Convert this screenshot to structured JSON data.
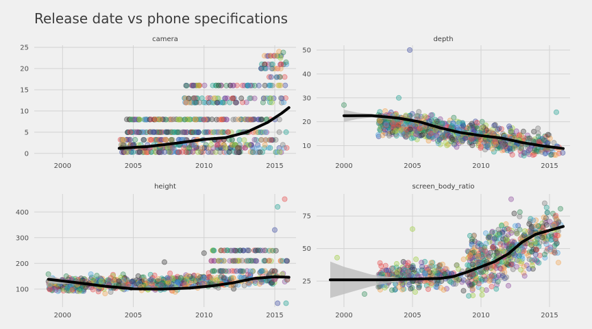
{
  "chart_data": {
    "type": "scatter",
    "title": "Release date vs phone specifications",
    "xlabel": "",
    "ylabel": "",
    "grid": true,
    "legend": "none",
    "trend_color": "#000000",
    "ribbon_color": "#bdbdbd",
    "point_colors": [
      "#e64b4b",
      "#4aa3df",
      "#2e8b57",
      "#3b4aa0",
      "#f2a04a",
      "#8b4a9c",
      "#9ccc3d",
      "#333333",
      "#777777",
      "#1a9e8f"
    ],
    "facets": [
      {
        "name": "camera",
        "xlim": [
          1998,
          2016.5
        ],
        "ylim": [
          -1,
          25.5
        ],
        "x_ticks": [
          2000,
          2005,
          2010,
          2015
        ],
        "x_tick_labels": [
          "2000",
          "2005",
          "2010",
          "2015"
        ],
        "y_ticks": [
          0,
          5,
          10,
          15,
          20,
          25
        ],
        "y_tick_labels": [
          "0",
          "5",
          "10",
          "15",
          "20",
          "25"
        ],
        "trend": [
          [
            2004,
            1.2
          ],
          [
            2006,
            1.6
          ],
          [
            2008,
            2.4
          ],
          [
            2010,
            3.3
          ],
          [
            2011.5,
            3.7
          ],
          [
            2013,
            5.0
          ],
          [
            2014.5,
            7.3
          ],
          [
            2015.5,
            9.5
          ],
          [
            2016,
            10.8
          ]
        ],
        "ribbon": null,
        "point_sets": [
          {
            "x_range": [
              2004,
              2016
            ],
            "y_values": [
              0.3,
              1.3,
              2,
              3.2
            ],
            "count": 320
          },
          {
            "x_range": [
              2004.5,
              2016
            ],
            "y_values": [
              5,
              8
            ],
            "count": 260
          },
          {
            "x_range": [
              2008.5,
              2016
            ],
            "y_values": [
              12,
              13,
              16
            ],
            "count": 130
          },
          {
            "x_range": [
              2014,
              2016
            ],
            "y_values": [
              18,
              20,
              21,
              23
            ],
            "count": 40
          }
        ],
        "outliers": [
          [
            2015.3,
            24
          ],
          [
            2015.6,
            23.8
          ],
          [
            2015.8,
            21.5
          ],
          [
            2015.4,
            22.5
          ]
        ]
      },
      {
        "name": "depth",
        "xlim": [
          1998,
          2016.5
        ],
        "ylim": [
          5,
          52
        ],
        "x_ticks": [
          2000,
          2005,
          2010,
          2015
        ],
        "x_tick_labels": [
          "2000",
          "2005",
          "2010",
          "2015"
        ],
        "y_ticks": [
          10,
          20,
          30,
          40,
          50
        ],
        "y_tick_labels": [
          "10",
          "20",
          "30",
          "40",
          "50"
        ],
        "trend": [
          [
            2000,
            22.5
          ],
          [
            2002,
            22.6
          ],
          [
            2004,
            21.5
          ],
          [
            2005.5,
            20
          ],
          [
            2007,
            17.5
          ],
          [
            2008.5,
            15.5
          ],
          [
            2010,
            14.2
          ],
          [
            2011.5,
            13.2
          ],
          [
            2013,
            11.3
          ],
          [
            2014.5,
            9.9
          ],
          [
            2016,
            8.8
          ]
        ],
        "ribbon": [
          [
            2000,
            25
          ],
          [
            2001,
            23.8
          ],
          [
            2002,
            23.2
          ],
          [
            2003,
            22.6
          ],
          [
            2003.5,
            22.2
          ],
          [
            2003.5,
            20.8
          ],
          [
            2003,
            21.2
          ],
          [
            2002,
            21.8
          ],
          [
            2001,
            21.2
          ],
          [
            2000,
            20
          ]
        ],
        "point_sets": [
          {
            "x_range": [
              2002.5,
              2016
            ],
            "y_center_start": 20,
            "y_center_end": 9,
            "y_spread": 5,
            "count": 800
          }
        ],
        "outliers": [
          [
            2004.8,
            50
          ],
          [
            2000,
            27
          ],
          [
            2004,
            30
          ],
          [
            2015.5,
            24
          ]
        ]
      },
      {
        "name": "height",
        "xlim": [
          1998,
          2016.5
        ],
        "ylim": [
          30,
          470
        ],
        "x_ticks": [
          2000,
          2005,
          2010,
          2015
        ],
        "x_tick_labels": [
          "2000",
          "2005",
          "2010",
          "2015"
        ],
        "y_ticks": [
          100,
          200,
          300,
          400
        ],
        "y_tick_labels": [
          "100",
          "200",
          "300",
          "400"
        ],
        "trend": [
          [
            1999,
            138
          ],
          [
            2001,
            125
          ],
          [
            2003,
            111
          ],
          [
            2005,
            101
          ],
          [
            2007,
            100
          ],
          [
            2009,
            104
          ],
          [
            2010.5,
            112
          ],
          [
            2012,
            124
          ],
          [
            2013.5,
            141
          ],
          [
            2015,
            148
          ],
          [
            2016,
            146
          ]
        ],
        "ribbon": [
          [
            1999,
            153
          ],
          [
            2000,
            138
          ],
          [
            2001,
            128
          ],
          [
            2001,
            122
          ],
          [
            2000,
            120
          ],
          [
            1999,
            123
          ]
        ],
        "point_sets": [
          {
            "x_range": [
              1999,
              2016
            ],
            "y_center_start": 115,
            "y_center_end": 140,
            "y_spread": 28,
            "count": 650
          },
          {
            "x_range": [
              2010.5,
              2016
            ],
            "y_values": [
              170,
              210,
              250
            ],
            "count": 120
          }
        ],
        "outliers": [
          [
            2015.7,
            450
          ],
          [
            2015.2,
            420
          ],
          [
            2015,
            330
          ],
          [
            2007.2,
            205
          ],
          [
            2010,
            240
          ],
          [
            1999,
            158
          ],
          [
            2002,
            158
          ],
          [
            2015.2,
            45
          ],
          [
            2015.8,
            45
          ]
        ]
      },
      {
        "name": "screen_body_ratio",
        "xlim": [
          1998,
          2016.5
        ],
        "ylim": [
          5,
          92
        ],
        "x_ticks": [
          2000,
          2005,
          2010,
          2015
        ],
        "x_tick_labels": [
          "2000",
          "2005",
          "2010",
          "2015"
        ],
        "y_ticks": [
          25,
          50,
          75
        ],
        "y_tick_labels": [
          "25",
          "50",
          "75"
        ],
        "trend": [
          [
            1999,
            26
          ],
          [
            2001,
            26
          ],
          [
            2003,
            26
          ],
          [
            2005,
            26.5
          ],
          [
            2007,
            27
          ],
          [
            2008,
            28.5
          ],
          [
            2009,
            32
          ],
          [
            2010,
            36
          ],
          [
            2011,
            40
          ],
          [
            2012,
            46
          ],
          [
            2013,
            55
          ],
          [
            2014,
            61
          ],
          [
            2015,
            64
          ],
          [
            2016,
            67
          ]
        ],
        "ribbon": [
          [
            1999,
            40
          ],
          [
            2000,
            36
          ],
          [
            2001,
            33
          ],
          [
            2002,
            30
          ],
          [
            2003,
            28.5
          ],
          [
            2004,
            27.5
          ],
          [
            2004,
            24.5
          ],
          [
            2003,
            23
          ],
          [
            2002,
            21
          ],
          [
            2001,
            18
          ],
          [
            2000,
            15
          ],
          [
            1999,
            12
          ]
        ],
        "point_sets": [
          {
            "x_range": [
              2002.5,
              2009
            ],
            "y_center_start": 28,
            "y_center_end": 30,
            "y_spread": 11,
            "count": 260
          },
          {
            "x_range": [
              2009,
              2016
            ],
            "y_center_start": 35,
            "y_center_end": 66,
            "y_spread": 20,
            "count": 520
          }
        ],
        "outliers": [
          [
            2012.2,
            88
          ],
          [
            2005,
            65
          ],
          [
            1999.5,
            43
          ],
          [
            2001.5,
            15
          ],
          [
            2003.5,
            18
          ]
        ]
      }
    ]
  }
}
